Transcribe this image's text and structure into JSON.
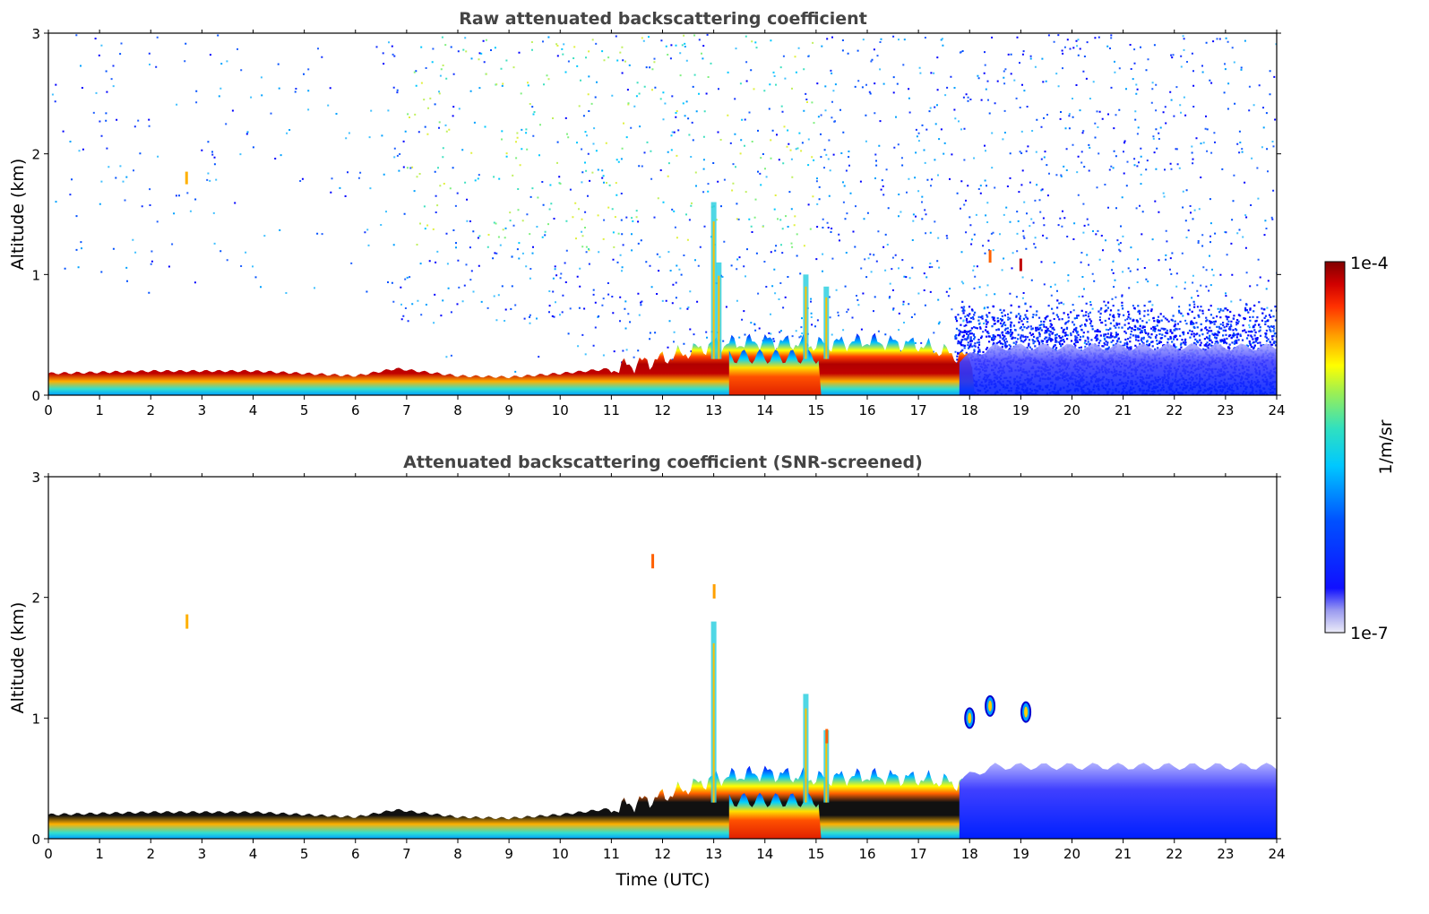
{
  "chart_data": [
    {
      "type": "heatmap",
      "title": "Raw attenuated backscattering coefficient",
      "xlabel": "",
      "ylabel": "Altitude (km)",
      "xlim": [
        0,
        24
      ],
      "ylim": [
        0,
        3
      ],
      "xticks": [
        "0",
        "1",
        "2",
        "3",
        "4",
        "5",
        "6",
        "7",
        "8",
        "9",
        "10",
        "11",
        "12",
        "13",
        "14",
        "15",
        "16",
        "17",
        "18",
        "19",
        "20",
        "21",
        "22",
        "23",
        "24"
      ],
      "yticks": [
        "0",
        "1",
        "2",
        "3"
      ],
      "features": {
        "boundary_layer_top_km": [
          {
            "t": 0,
            "h": 0.18
          },
          {
            "t": 2,
            "h": 0.2
          },
          {
            "t": 4,
            "h": 0.2
          },
          {
            "t": 6,
            "h": 0.16
          },
          {
            "t": 6.8,
            "h": 0.22
          },
          {
            "t": 8,
            "h": 0.16
          },
          {
            "t": 9,
            "h": 0.15
          },
          {
            "t": 10,
            "h": 0.18
          },
          {
            "t": 11,
            "h": 0.22
          },
          {
            "t": 12,
            "h": 0.3
          },
          {
            "t": 13,
            "h": 0.42
          },
          {
            "t": 14,
            "h": 0.45
          },
          {
            "t": 15,
            "h": 0.42
          },
          {
            "t": 16,
            "h": 0.45
          },
          {
            "t": 17,
            "h": 0.42
          },
          {
            "t": 18,
            "h": 0.3
          }
        ],
        "noise_above_layer": true,
        "vertical_plumes_utc": [
          13.0,
          14.8,
          15.2
        ]
      }
    },
    {
      "type": "heatmap",
      "title": "Attenuated backscattering coefficient (SNR-screened)",
      "xlabel": "Time (UTC)",
      "ylabel": "Altitude (km)",
      "xlim": [
        0,
        24
      ],
      "ylim": [
        0,
        3
      ],
      "xticks": [
        "0",
        "1",
        "2",
        "3",
        "4",
        "5",
        "6",
        "7",
        "8",
        "9",
        "10",
        "11",
        "12",
        "13",
        "14",
        "15",
        "16",
        "17",
        "18",
        "19",
        "20",
        "21",
        "22",
        "23",
        "24"
      ],
      "yticks": [
        "0",
        "1",
        "2",
        "3"
      ],
      "features": {
        "boundary_layer_top_km": [
          {
            "t": 0,
            "h": 0.2
          },
          {
            "t": 2,
            "h": 0.22
          },
          {
            "t": 4,
            "h": 0.22
          },
          {
            "t": 6,
            "h": 0.18
          },
          {
            "t": 6.8,
            "h": 0.24
          },
          {
            "t": 8,
            "h": 0.18
          },
          {
            "t": 9,
            "h": 0.17
          },
          {
            "t": 10,
            "h": 0.2
          },
          {
            "t": 11,
            "h": 0.25
          },
          {
            "t": 12,
            "h": 0.35
          },
          {
            "t": 13,
            "h": 0.5
          },
          {
            "t": 14,
            "h": 0.55
          },
          {
            "t": 15,
            "h": 0.5
          },
          {
            "t": 16,
            "h": 0.52
          },
          {
            "t": 17,
            "h": 0.5
          },
          {
            "t": 18,
            "h": 0.45
          }
        ],
        "clouds": [
          {
            "t": 18.0,
            "h": 1.0
          },
          {
            "t": 18.4,
            "h": 1.1
          },
          {
            "t": 19.1,
            "h": 1.05
          }
        ]
      }
    }
  ],
  "colorbar": {
    "label": "1/m/sr",
    "max_label": "1e-4",
    "min_label": "1e-7",
    "scale": "log",
    "colormap": [
      "#e8e8f8",
      "#9090ff",
      "#0000ff",
      "#0060ff",
      "#00c8ff",
      "#40e0c0",
      "#a0f060",
      "#ffff00",
      "#ffa000",
      "#ff3000",
      "#c00000",
      "#800000"
    ]
  }
}
